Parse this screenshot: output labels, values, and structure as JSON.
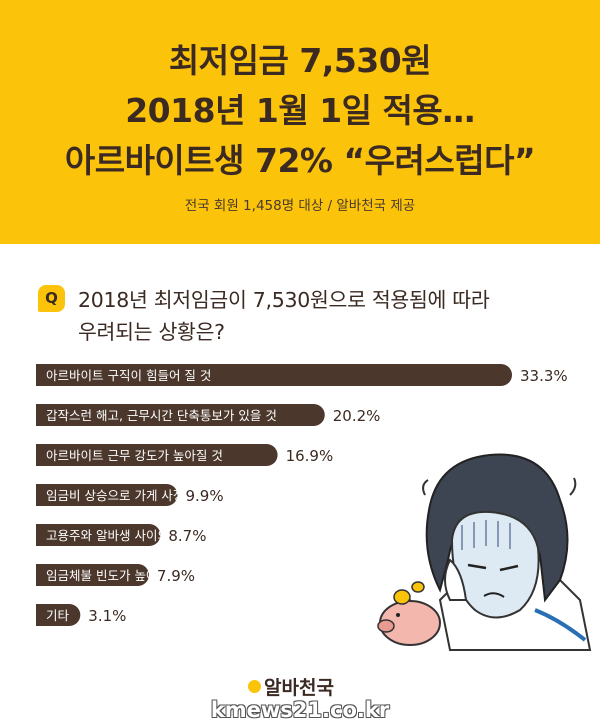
{
  "header": {
    "title_lines": [
      "최저임금 7,530원",
      "2018년 1월 1일 적용…",
      "아르바이트생 72% “우려스럽다”"
    ],
    "subtitle": "전국 회원 1,458명 대상 / 알바천국 제공"
  },
  "question": {
    "badge": "Q",
    "lines": [
      "2018년 최저임금이 7,530원으로 적용됨에 따라",
      "우려되는 상황은?"
    ]
  },
  "chart_data": {
    "type": "bar",
    "orientation": "horizontal",
    "title": "2018년 최저임금이 7,530원으로 적용됨에 따라 우려되는 상황은?",
    "categories": [
      "아르바이트 구직이 힘들어 질 것",
      "갑작스런 해고, 근무시간 단축통보가 있을 것",
      "아르바이트 근무 강도가 높아질 것",
      "임금비 상승으로 가게 사정이 악화될 것",
      "고용주와 알바생 사이의 갈등이 깊어질 것",
      "임금체불 빈도가 높아질 것",
      "기타"
    ],
    "values": [
      33.3,
      20.2,
      16.9,
      9.9,
      8.7,
      7.9,
      3.1
    ],
    "value_labels": [
      "33.3%",
      "20.2%",
      "16.9%",
      "9.9%",
      "8.7%",
      "7.9%",
      "3.1%"
    ],
    "unit": "%",
    "bar_color": "#4b372b",
    "label_color": "#ffffff",
    "value_color": "#3b2a22"
  },
  "footer": {
    "logo_text": "알바천국",
    "watermark": "kmews21.co.kr"
  },
  "colors": {
    "header_bg": "#fcc30b",
    "text_dark": "#3b2a22"
  }
}
